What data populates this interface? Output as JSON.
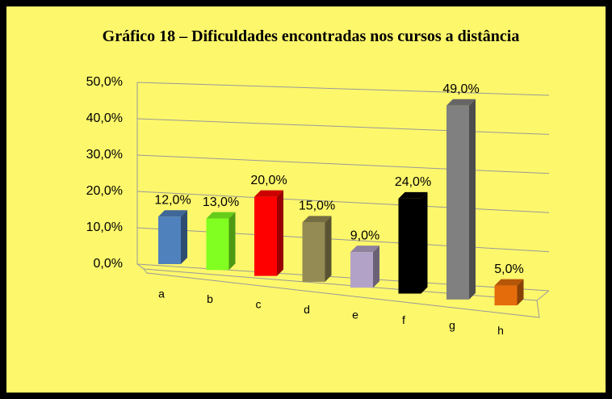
{
  "chart_data": {
    "type": "bar3d",
    "title": "Gráfico 18 – Dificuldades encontradas nos cursos a distância",
    "categories": [
      "a",
      "b",
      "c",
      "d",
      "e",
      "f",
      "g",
      "h"
    ],
    "values": [
      12,
      13,
      20,
      15,
      9,
      24,
      49,
      5
    ],
    "value_labels": [
      "12,0%",
      "13,0%",
      "20,0%",
      "15,0%",
      "9,0%",
      "24,0%",
      "49,0%",
      "5,0%"
    ],
    "colors": [
      "#4f81bd",
      "#80ff20",
      "#ff0000",
      "#948a54",
      "#b3a2c7",
      "#000000",
      "#808080",
      "#e46c0a"
    ],
    "ylim": [
      0,
      50
    ],
    "yticks": [
      {
        "value": 0,
        "label": "0,0%"
      },
      {
        "value": 10,
        "label": "10,0%"
      },
      {
        "value": 20,
        "label": "20,0%"
      },
      {
        "value": 30,
        "label": "30,0%"
      },
      {
        "value": 40,
        "label": "40,0%"
      },
      {
        "value": 50,
        "label": "50,0%"
      }
    ],
    "grid": true
  }
}
